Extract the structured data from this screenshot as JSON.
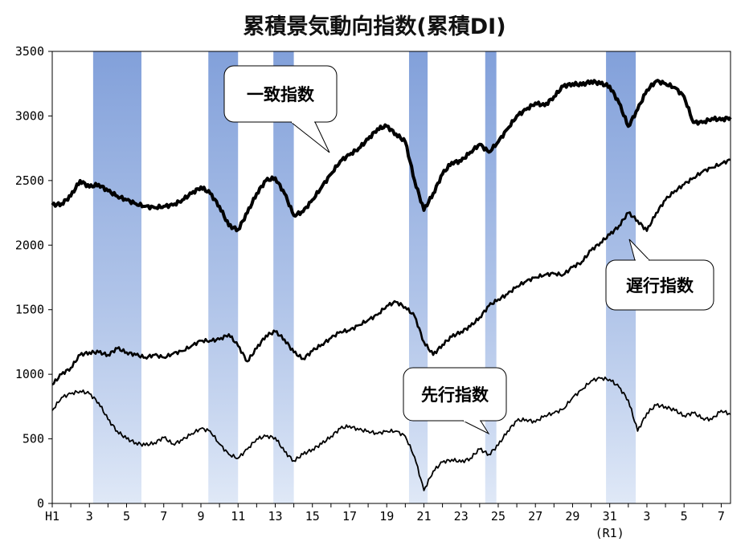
{
  "chart_data": {
    "type": "line",
    "title": "累積景気動向指数(累積DI)",
    "xlabel": "",
    "ylabel": "",
    "x_tick_labels": [
      "H1",
      "3",
      "5",
      "7",
      "9",
      "11",
      "13",
      "15",
      "17",
      "19",
      "21",
      "23",
      "25",
      "27",
      "29",
      "31",
      "3",
      "5",
      "7"
    ],
    "x_tick_sublabel": "(R1)",
    "x_range": [
      1989.0,
      2025.5
    ],
    "ylim": [
      0,
      3500
    ],
    "y_ticks": [
      0,
      500,
      1000,
      1500,
      2000,
      2500,
      3000,
      3500
    ],
    "grid": false,
    "shaded_periods": [
      [
        1991.2,
        1993.8
      ],
      [
        1997.4,
        1999.0
      ],
      [
        2000.9,
        2002.0
      ],
      [
        2008.2,
        2009.2
      ],
      [
        2012.3,
        2012.9
      ],
      [
        2018.8,
        2020.4
      ]
    ],
    "shade_color": "#7b9bd8",
    "series": [
      {
        "name": "一致指数",
        "stroke": 4,
        "points": [
          [
            1989.0,
            2310
          ],
          [
            1989.5,
            2320
          ],
          [
            1990.0,
            2380
          ],
          [
            1990.5,
            2500
          ],
          [
            1991.0,
            2450
          ],
          [
            1991.5,
            2470
          ],
          [
            1992.0,
            2420
          ],
          [
            1992.5,
            2380
          ],
          [
            1993.0,
            2350
          ],
          [
            1993.5,
            2320
          ],
          [
            1994.0,
            2300
          ],
          [
            1994.5,
            2290
          ],
          [
            1995.0,
            2300
          ],
          [
            1995.5,
            2310
          ],
          [
            1996.0,
            2350
          ],
          [
            1996.5,
            2400
          ],
          [
            1997.0,
            2450
          ],
          [
            1997.5,
            2400
          ],
          [
            1998.0,
            2300
          ],
          [
            1998.5,
            2150
          ],
          [
            1999.0,
            2120
          ],
          [
            1999.5,
            2250
          ],
          [
            2000.0,
            2400
          ],
          [
            2000.5,
            2500
          ],
          [
            2001.0,
            2520
          ],
          [
            2001.5,
            2400
          ],
          [
            2002.0,
            2230
          ],
          [
            2002.5,
            2260
          ],
          [
            2003.0,
            2350
          ],
          [
            2003.5,
            2450
          ],
          [
            2004.0,
            2550
          ],
          [
            2004.5,
            2650
          ],
          [
            2005.0,
            2700
          ],
          [
            2005.5,
            2750
          ],
          [
            2006.0,
            2820
          ],
          [
            2006.5,
            2900
          ],
          [
            2007.0,
            2920
          ],
          [
            2007.5,
            2860
          ],
          [
            2008.0,
            2800
          ],
          [
            2008.5,
            2500
          ],
          [
            2009.0,
            2270
          ],
          [
            2009.5,
            2400
          ],
          [
            2010.0,
            2550
          ],
          [
            2010.5,
            2640
          ],
          [
            2011.0,
            2650
          ],
          [
            2011.5,
            2720
          ],
          [
            2012.0,
            2780
          ],
          [
            2012.5,
            2720
          ],
          [
            2013.0,
            2800
          ],
          [
            2013.5,
            2900
          ],
          [
            2014.0,
            3000
          ],
          [
            2014.5,
            3050
          ],
          [
            2015.0,
            3100
          ],
          [
            2015.5,
            3080
          ],
          [
            2016.0,
            3150
          ],
          [
            2016.5,
            3230
          ],
          [
            2017.0,
            3250
          ],
          [
            2017.5,
            3240
          ],
          [
            2018.0,
            3270
          ],
          [
            2018.5,
            3250
          ],
          [
            2019.0,
            3230
          ],
          [
            2019.5,
            3100
          ],
          [
            2020.0,
            2920
          ],
          [
            2020.5,
            3050
          ],
          [
            2021.0,
            3200
          ],
          [
            2021.5,
            3270
          ],
          [
            2022.0,
            3250
          ],
          [
            2022.5,
            3220
          ],
          [
            2023.0,
            3150
          ],
          [
            2023.5,
            2950
          ],
          [
            2024.0,
            2950
          ],
          [
            2024.5,
            2980
          ],
          [
            2025.0,
            2970
          ],
          [
            2025.5,
            2990
          ]
        ]
      },
      {
        "name": "遅行指数",
        "stroke": 2.6,
        "points": [
          [
            1989.0,
            920
          ],
          [
            1989.5,
            1000
          ],
          [
            1990.0,
            1050
          ],
          [
            1990.5,
            1150
          ],
          [
            1991.0,
            1170
          ],
          [
            1991.5,
            1170
          ],
          [
            1992.0,
            1150
          ],
          [
            1992.5,
            1200
          ],
          [
            1993.0,
            1170
          ],
          [
            1993.5,
            1150
          ],
          [
            1994.0,
            1130
          ],
          [
            1994.5,
            1150
          ],
          [
            1995.0,
            1130
          ],
          [
            1995.5,
            1160
          ],
          [
            1996.0,
            1180
          ],
          [
            1996.5,
            1220
          ],
          [
            1997.0,
            1260
          ],
          [
            1997.5,
            1260
          ],
          [
            1998.0,
            1270
          ],
          [
            1998.5,
            1310
          ],
          [
            1999.0,
            1220
          ],
          [
            1999.5,
            1100
          ],
          [
            2000.0,
            1200
          ],
          [
            2000.5,
            1300
          ],
          [
            2001.0,
            1330
          ],
          [
            2001.5,
            1270
          ],
          [
            2002.0,
            1170
          ],
          [
            2002.5,
            1120
          ],
          [
            2003.0,
            1180
          ],
          [
            2003.5,
            1230
          ],
          [
            2004.0,
            1280
          ],
          [
            2004.5,
            1330
          ],
          [
            2005.0,
            1340
          ],
          [
            2005.5,
            1380
          ],
          [
            2006.0,
            1420
          ],
          [
            2006.5,
            1460
          ],
          [
            2007.0,
            1530
          ],
          [
            2007.5,
            1560
          ],
          [
            2008.0,
            1520
          ],
          [
            2008.5,
            1450
          ],
          [
            2009.0,
            1250
          ],
          [
            2009.5,
            1150
          ],
          [
            2010.0,
            1230
          ],
          [
            2010.5,
            1290
          ],
          [
            2011.0,
            1330
          ],
          [
            2011.5,
            1370
          ],
          [
            2012.0,
            1440
          ],
          [
            2012.5,
            1530
          ],
          [
            2013.0,
            1580
          ],
          [
            2013.5,
            1620
          ],
          [
            2014.0,
            1680
          ],
          [
            2014.5,
            1720
          ],
          [
            2015.0,
            1750
          ],
          [
            2015.5,
            1770
          ],
          [
            2016.0,
            1780
          ],
          [
            2016.5,
            1770
          ],
          [
            2017.0,
            1830
          ],
          [
            2017.5,
            1870
          ],
          [
            2018.0,
            1960
          ],
          [
            2018.5,
            2020
          ],
          [
            2019.0,
            2080
          ],
          [
            2019.5,
            2150
          ],
          [
            2020.0,
            2250
          ],
          [
            2020.5,
            2190
          ],
          [
            2021.0,
            2110
          ],
          [
            2021.5,
            2250
          ],
          [
            2022.0,
            2350
          ],
          [
            2022.5,
            2420
          ],
          [
            2023.0,
            2470
          ],
          [
            2023.5,
            2520
          ],
          [
            2024.0,
            2570
          ],
          [
            2024.5,
            2600
          ],
          [
            2025.0,
            2630
          ],
          [
            2025.5,
            2660
          ]
        ]
      },
      {
        "name": "先行指数",
        "stroke": 1.8,
        "points": [
          [
            1989.0,
            720
          ],
          [
            1989.5,
            820
          ],
          [
            1990.0,
            850
          ],
          [
            1990.5,
            870
          ],
          [
            1991.0,
            850
          ],
          [
            1991.5,
            780
          ],
          [
            1992.0,
            650
          ],
          [
            1992.5,
            560
          ],
          [
            1993.0,
            500
          ],
          [
            1993.5,
            470
          ],
          [
            1994.0,
            450
          ],
          [
            1994.5,
            470
          ],
          [
            1995.0,
            510
          ],
          [
            1995.5,
            460
          ],
          [
            1996.0,
            490
          ],
          [
            1996.5,
            540
          ],
          [
            1997.0,
            580
          ],
          [
            1997.5,
            560
          ],
          [
            1998.0,
            460
          ],
          [
            1998.5,
            380
          ],
          [
            1999.0,
            350
          ],
          [
            1999.5,
            420
          ],
          [
            2000.0,
            500
          ],
          [
            2000.5,
            520
          ],
          [
            2001.0,
            510
          ],
          [
            2001.5,
            400
          ],
          [
            2002.0,
            330
          ],
          [
            2002.5,
            380
          ],
          [
            2003.0,
            420
          ],
          [
            2003.5,
            460
          ],
          [
            2004.0,
            520
          ],
          [
            2004.5,
            580
          ],
          [
            2005.0,
            600
          ],
          [
            2005.5,
            570
          ],
          [
            2006.0,
            560
          ],
          [
            2006.5,
            540
          ],
          [
            2007.0,
            560
          ],
          [
            2007.5,
            560
          ],
          [
            2008.0,
            520
          ],
          [
            2008.5,
            360
          ],
          [
            2009.0,
            100
          ],
          [
            2009.5,
            250
          ],
          [
            2010.0,
            320
          ],
          [
            2010.5,
            340
          ],
          [
            2011.0,
            320
          ],
          [
            2011.5,
            350
          ],
          [
            2012.0,
            420
          ],
          [
            2012.5,
            380
          ],
          [
            2013.0,
            450
          ],
          [
            2013.5,
            560
          ],
          [
            2014.0,
            640
          ],
          [
            2014.5,
            650
          ],
          [
            2015.0,
            630
          ],
          [
            2015.5,
            680
          ],
          [
            2016.0,
            700
          ],
          [
            2016.5,
            730
          ],
          [
            2017.0,
            820
          ],
          [
            2017.5,
            880
          ],
          [
            2018.0,
            950
          ],
          [
            2018.5,
            970
          ],
          [
            2019.0,
            960
          ],
          [
            2019.5,
            900
          ],
          [
            2020.0,
            800
          ],
          [
            2020.5,
            560
          ],
          [
            2021.0,
            700
          ],
          [
            2021.5,
            760
          ],
          [
            2022.0,
            750
          ],
          [
            2022.5,
            720
          ],
          [
            2023.0,
            680
          ],
          [
            2023.5,
            700
          ],
          [
            2024.0,
            660
          ],
          [
            2024.5,
            650
          ],
          [
            2025.0,
            720
          ],
          [
            2025.5,
            690
          ]
        ]
      }
    ],
    "annotations": [
      {
        "text": "一致指数",
        "series": "一致指数"
      },
      {
        "text": "遅行指数",
        "series": "遅行指数"
      },
      {
        "text": "先行指数",
        "series": "先行指数"
      }
    ]
  }
}
